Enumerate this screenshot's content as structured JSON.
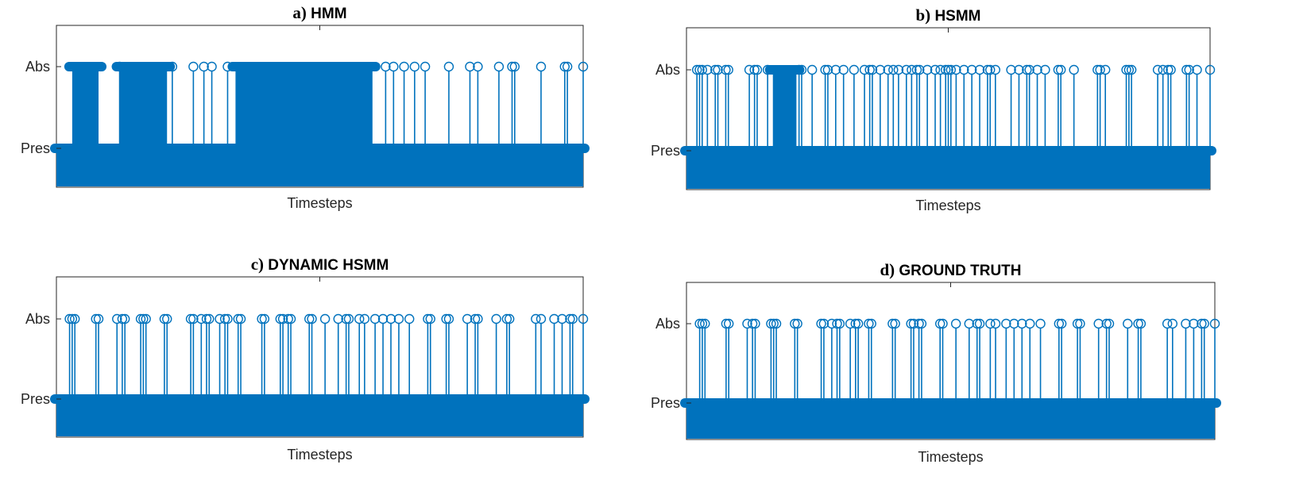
{
  "colors": {
    "series": "#0072BD",
    "axis": "#262626"
  },
  "chart_data": [
    {
      "type": "stem",
      "title_prefix": "a)",
      "title": "HMM",
      "xlabel": "Timesteps",
      "yticklabels": [
        "Pres",
        "Abs"
      ],
      "xlim": [
        0,
        100
      ],
      "abs_intervals": [
        [
          3,
          8
        ],
        [
          12,
          21
        ],
        [
          34,
          60
        ]
      ],
      "abs_points": [
        12,
        22,
        26,
        28,
        29.5,
        32.5,
        62.5,
        64,
        66,
        68,
        70,
        74.5,
        78.5,
        80,
        84,
        86.5,
        87,
        92,
        96.5,
        97,
        100
      ]
    },
    {
      "type": "stem",
      "title_prefix": "b)",
      "title": "HSMM",
      "xlabel": "Timesteps",
      "yticklabels": [
        "Pres",
        "Abs"
      ],
      "xlim": [
        0,
        100
      ],
      "abs_intervals": [
        [
          16.5,
          21
        ]
      ],
      "abs_points": [
        2,
        2.5,
        3,
        4,
        5.5,
        6,
        7.5,
        8,
        12,
        13,
        13.5,
        15.5,
        21.5,
        22,
        24,
        26.5,
        27,
        28.5,
        30,
        32,
        34,
        35,
        35.5,
        37,
        38.5,
        39.5,
        40.5,
        42,
        43,
        44,
        44.5,
        46,
        47.5,
        48.5,
        49.5,
        50,
        50.5,
        51.5,
        53,
        54.5,
        56,
        57.5,
        58,
        59,
        62,
        63.5,
        65,
        65.5,
        67,
        68.5,
        71,
        71.5,
        74,
        78.5,
        79,
        80,
        84,
        84.5,
        85,
        90,
        91,
        92,
        92.5,
        95.5,
        96,
        97.5,
        100
      ]
    },
    {
      "type": "stem",
      "title_prefix": "c)",
      "title": "DYNAMIC HSMM",
      "xlabel": "Timesteps",
      "yticklabels": [
        "Pres",
        "Abs"
      ],
      "xlim": [
        0,
        100
      ],
      "abs_intervals": [],
      "abs_points": [
        2.5,
        3,
        3.5,
        7.5,
        8,
        11.5,
        12.5,
        13,
        16,
        16.5,
        17,
        20.5,
        21,
        25.5,
        26,
        27.5,
        28.5,
        29,
        31,
        32,
        32.5,
        34.5,
        35,
        39,
        39.5,
        42.5,
        43,
        44,
        44.5,
        48,
        48.5,
        51,
        53.5,
        55,
        55.5,
        57.5,
        58.5,
        60.5,
        62,
        63.5,
        65,
        67,
        70.5,
        71,
        74,
        74.5,
        78,
        79.5,
        80,
        83.5,
        85.5,
        86,
        91,
        92,
        94.5,
        96,
        97.5,
        98,
        100
      ]
    },
    {
      "type": "stem",
      "title_prefix": "d)",
      "title": "GROUND TRUTH",
      "xlabel": "Timesteps",
      "yticklabels": [
        "Pres",
        "Abs"
      ],
      "xlim": [
        0,
        100
      ],
      "abs_intervals": [],
      "abs_points": [
        2.5,
        3,
        3.5,
        7.5,
        8,
        11.5,
        12.5,
        13,
        16,
        16.5,
        17,
        20.5,
        21,
        25.5,
        26,
        27.5,
        28.5,
        29,
        31,
        32,
        32.5,
        34.5,
        35,
        39,
        39.5,
        42.5,
        43,
        44,
        44.5,
        48,
        48.5,
        51,
        53.5,
        55,
        55.5,
        57.5,
        58.5,
        60.5,
        62,
        63.5,
        65,
        67,
        70.5,
        71,
        74,
        74.5,
        78,
        79.5,
        80,
        83.5,
        85.5,
        86,
        91,
        92,
        94.5,
        96,
        97.5,
        98,
        100
      ]
    }
  ]
}
